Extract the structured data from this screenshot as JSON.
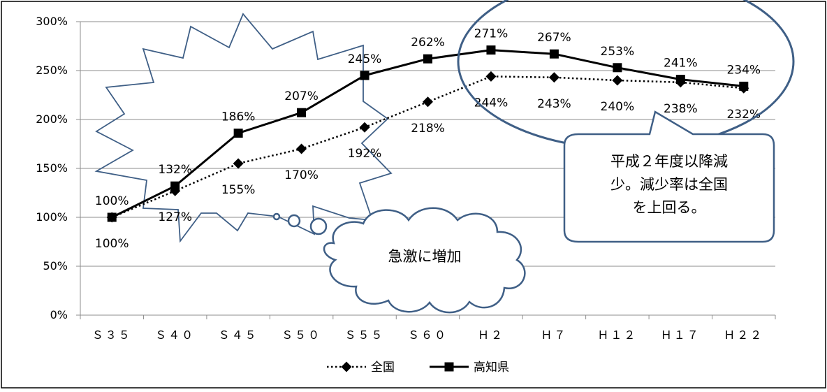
{
  "chart_data": {
    "type": "line",
    "categories": [
      "Ｓ３５",
      "Ｓ４０",
      "Ｓ４５",
      "Ｓ５０",
      "Ｓ５５",
      "Ｓ６０",
      "Ｈ２",
      "Ｈ７",
      "Ｈ１２",
      "Ｈ１７",
      "Ｈ２２"
    ],
    "y_ticks": [
      "0%",
      "50%",
      "100%",
      "150%",
      "200%",
      "250%",
      "300%"
    ],
    "ylim": [
      0,
      300
    ],
    "grid": true,
    "legend_placement": "bottom",
    "series": [
      {
        "name": "全国",
        "values": [
          100,
          127,
          155,
          170,
          192,
          218,
          244,
          243,
          240,
          238,
          232
        ],
        "labels": [
          "100%",
          "127%",
          "155%",
          "170%",
          "192%",
          "218%",
          "244%",
          "243%",
          "240%",
          "238%",
          "232%"
        ],
        "line_style": "dotted",
        "marker": "diamond",
        "color": "#000000"
      },
      {
        "name": "高知県",
        "values": [
          100,
          132,
          186,
          207,
          245,
          262,
          271,
          267,
          253,
          241,
          234
        ],
        "labels": [
          "100%",
          "132%",
          "186%",
          "207%",
          "245%",
          "262%",
          "271%",
          "267%",
          "253%",
          "241%",
          "234%"
        ],
        "line_style": "solid",
        "marker": "square",
        "color": "#000000"
      }
    ],
    "annotations": [
      {
        "text": "急激に増加",
        "shape": "thought-cloud"
      },
      {
        "text_lines": [
          "平成２年度以降減",
          "少。減少率は全国",
          "を上回る。"
        ],
        "shape": "rounded-callout"
      }
    ],
    "annotation_color": "#3f5f86"
  }
}
